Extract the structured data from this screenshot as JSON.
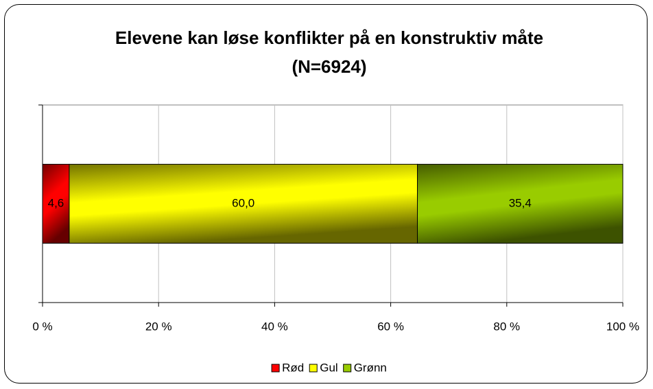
{
  "chart_data": {
    "type": "stacked_bar_horizontal",
    "title": "Elevene kan løse konflikter på en konstruktiv måte (N=6924)",
    "categories": [
      null
    ],
    "series": [
      {
        "name": "Rød",
        "color": "#ff0000",
        "values": [
          4.6
        ],
        "value_labels": [
          "4,6"
        ]
      },
      {
        "name": "Gul",
        "color": "#ffff00",
        "values": [
          60.0
        ],
        "value_labels": [
          "60,0"
        ]
      },
      {
        "name": "Grønn",
        "color": "#99cc00",
        "values": [
          35.4
        ],
        "value_labels": [
          "35,4"
        ]
      }
    ],
    "xlim": [
      0,
      100
    ],
    "xticks": [
      {
        "value": 0,
        "label": "0 %"
      },
      {
        "value": 20,
        "label": "20 %"
      },
      {
        "value": 40,
        "label": "40 %"
      },
      {
        "value": 60,
        "label": "60 %"
      },
      {
        "value": 80,
        "label": "80 %"
      },
      {
        "value": 100,
        "label": "100 %"
      }
    ],
    "grid": true,
    "legend": "bottom"
  }
}
